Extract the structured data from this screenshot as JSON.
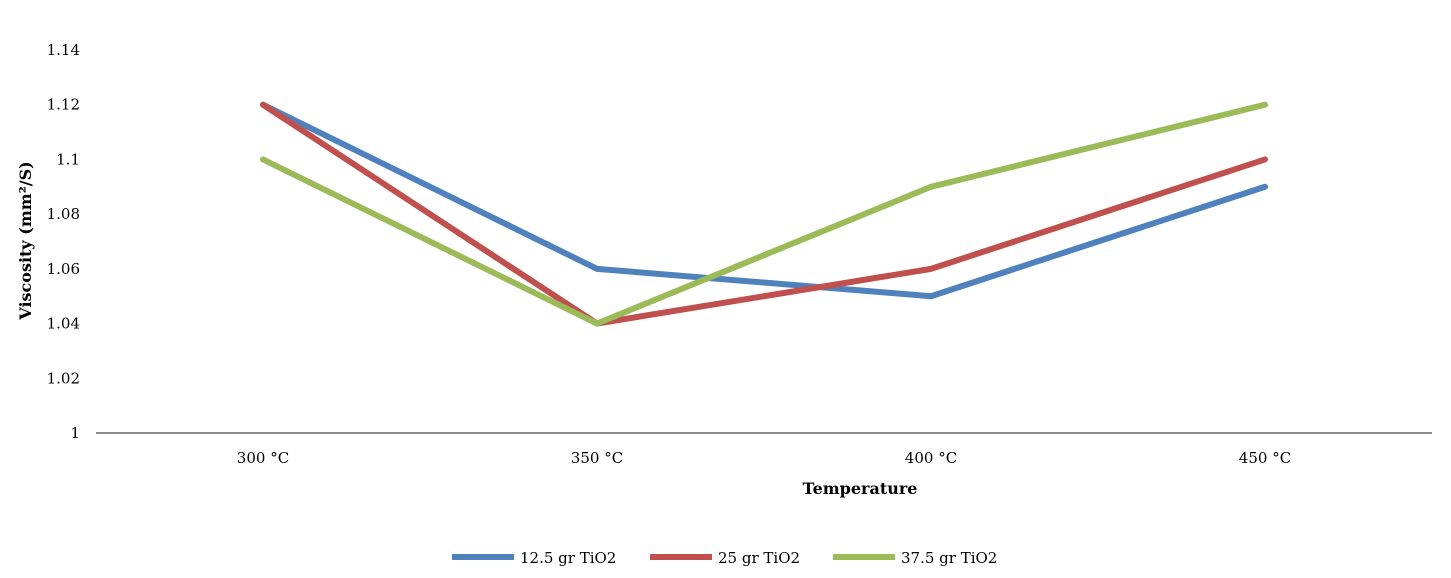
{
  "chart_data": {
    "type": "line",
    "categories": [
      "300 °C",
      "350 °C",
      "400 °C",
      "450 °C"
    ],
    "xlabel": "Temperature",
    "ylabel": "Viscosity (mm²/S)",
    "ylim": [
      1,
      1.14
    ],
    "yticks": [
      "1",
      "1.02",
      "1.04",
      "1.06",
      "1.08",
      "1.1",
      "1.12",
      "1.14"
    ],
    "grid": false,
    "legend_position": "bottom",
    "series": [
      {
        "name": "12.5 gr TiO2",
        "color": "#4F81BD",
        "values": [
          1.12,
          1.06,
          1.05,
          1.09
        ]
      },
      {
        "name": "25 gr TiO2",
        "color": "#C0504D",
        "values": [
          1.12,
          1.04,
          1.06,
          1.1
        ]
      },
      {
        "name": "37.5 gr TiO2",
        "color": "#9BBB59",
        "values": [
          1.1,
          1.04,
          1.09,
          1.12
        ]
      }
    ]
  }
}
